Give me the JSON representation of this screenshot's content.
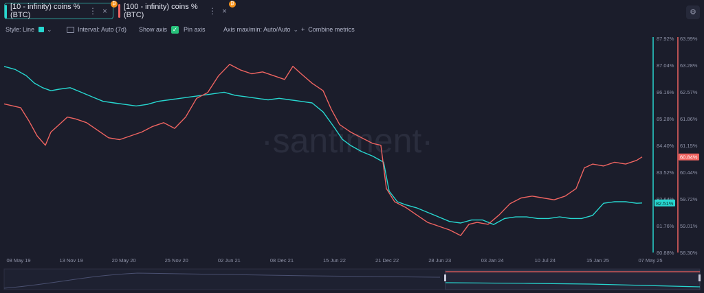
{
  "tabs": [
    {
      "label": "[10 - infinity) coins % (BTC)",
      "color": "#27d7d0",
      "dots": "⋮",
      "close": "×",
      "badge": "₿"
    },
    {
      "label": "[100 - infinity) coins % (BTC)",
      "color": "#ef6461",
      "dots": "⋮",
      "close": "×",
      "badge": "₿"
    }
  ],
  "toolbar": {
    "style_label": "Style: Line",
    "interval_label": "Interval: Auto (7d)",
    "show_axis_label": "Show axis",
    "pin_axis_label": "Pin axis",
    "axis_maxmin_label": "Axis max/min: Auto/Auto",
    "combine_label": "Combine metrics",
    "plus": "+",
    "checkmark": "✓",
    "chevron": "⌄"
  },
  "watermark": "·santiment·",
  "chart_data": {
    "type": "line",
    "x_ticks": [
      "08 May 19",
      "13 Nov 19",
      "20 May 20",
      "25 Nov 20",
      "02 Jun 21",
      "08 Dec 21",
      "15 Jun 22",
      "21 Dec 22",
      "28 Jun 23",
      "03 Jan 24",
      "10 Jul 24",
      "15 Jan 25",
      "07 May 25"
    ],
    "left_axis": {
      "series": "[10 - infinity) coins % (BTC)",
      "color": "#27d7d0",
      "ticks": [
        "87.92%",
        "87.04%",
        "86.16%",
        "85.28%",
        "84.40%",
        "83.52%",
        "82.64%",
        "81.76%",
        "80.88%"
      ],
      "range": [
        80.88,
        87.92
      ],
      "current": "82.51%"
    },
    "right_axis": {
      "series": "[100 - infinity) coins % (BTC)",
      "color": "#ef6461",
      "ticks": [
        "63.99%",
        "63.28%",
        "62.57%",
        "61.86%",
        "61.15%",
        "60.44%",
        "59.72%",
        "59.01%",
        "58.30%"
      ],
      "range": [
        58.3,
        63.99
      ],
      "current": "60.84%"
    },
    "series": [
      {
        "name": "[10 - infinity) coins % (BTC)",
        "axis": "left",
        "values": [
          [
            0,
            87.0
          ],
          [
            0.2,
            86.9
          ],
          [
            0.4,
            86.7
          ],
          [
            0.55,
            86.45
          ],
          [
            0.7,
            86.3
          ],
          [
            0.85,
            86.2
          ],
          [
            1.0,
            86.25
          ],
          [
            1.2,
            86.3
          ],
          [
            1.4,
            86.15
          ],
          [
            1.6,
            86.0
          ],
          [
            1.8,
            85.85
          ],
          [
            2.0,
            85.8
          ],
          [
            2.2,
            85.75
          ],
          [
            2.4,
            85.7
          ],
          [
            2.6,
            85.75
          ],
          [
            2.8,
            85.85
          ],
          [
            3.0,
            85.9
          ],
          [
            3.2,
            85.95
          ],
          [
            3.4,
            86.0
          ],
          [
            3.6,
            86.05
          ],
          [
            3.8,
            86.1
          ],
          [
            4.0,
            86.15
          ],
          [
            4.2,
            86.05
          ],
          [
            4.4,
            86.0
          ],
          [
            4.6,
            85.95
          ],
          [
            4.8,
            85.9
          ],
          [
            5.0,
            85.95
          ],
          [
            5.2,
            85.9
          ],
          [
            5.4,
            85.85
          ],
          [
            5.6,
            85.8
          ],
          [
            5.8,
            85.5
          ],
          [
            6.0,
            85.0
          ],
          [
            6.15,
            84.6
          ],
          [
            6.3,
            84.4
          ],
          [
            6.5,
            84.2
          ],
          [
            6.7,
            84.05
          ],
          [
            6.9,
            83.85
          ],
          [
            7.0,
            82.9
          ],
          [
            7.15,
            82.55
          ],
          [
            7.3,
            82.45
          ],
          [
            7.5,
            82.35
          ],
          [
            7.7,
            82.2
          ],
          [
            7.9,
            82.05
          ],
          [
            8.1,
            81.9
          ],
          [
            8.3,
            81.85
          ],
          [
            8.5,
            81.95
          ],
          [
            8.7,
            81.95
          ],
          [
            8.9,
            81.8
          ],
          [
            9.1,
            82.0
          ],
          [
            9.3,
            82.05
          ],
          [
            9.5,
            82.05
          ],
          [
            9.7,
            82.0
          ],
          [
            9.9,
            82.0
          ],
          [
            10.1,
            82.05
          ],
          [
            10.3,
            82.0
          ],
          [
            10.5,
            82.0
          ],
          [
            10.7,
            82.1
          ],
          [
            10.9,
            82.5
          ],
          [
            11.1,
            82.55
          ],
          [
            11.3,
            82.55
          ],
          [
            11.5,
            82.5
          ],
          [
            11.6,
            82.51
          ]
        ]
      },
      {
        "name": "[100 - infinity) coins % (BTC)",
        "axis": "right",
        "values": [
          [
            0,
            62.25
          ],
          [
            0.15,
            62.2
          ],
          [
            0.3,
            62.15
          ],
          [
            0.45,
            61.8
          ],
          [
            0.6,
            61.4
          ],
          [
            0.75,
            61.15
          ],
          [
            0.85,
            61.5
          ],
          [
            1.0,
            61.7
          ],
          [
            1.15,
            61.9
          ],
          [
            1.3,
            61.85
          ],
          [
            1.5,
            61.75
          ],
          [
            1.7,
            61.55
          ],
          [
            1.9,
            61.35
          ],
          [
            2.1,
            61.3
          ],
          [
            2.3,
            61.4
          ],
          [
            2.5,
            61.5
          ],
          [
            2.7,
            61.65
          ],
          [
            2.9,
            61.75
          ],
          [
            3.1,
            61.6
          ],
          [
            3.3,
            61.9
          ],
          [
            3.5,
            62.4
          ],
          [
            3.7,
            62.55
          ],
          [
            3.9,
            63.0
          ],
          [
            4.1,
            63.3
          ],
          [
            4.3,
            63.15
          ],
          [
            4.5,
            63.05
          ],
          [
            4.7,
            63.1
          ],
          [
            4.9,
            63.0
          ],
          [
            5.1,
            62.9
          ],
          [
            5.25,
            63.25
          ],
          [
            5.4,
            63.05
          ],
          [
            5.6,
            62.8
          ],
          [
            5.8,
            62.6
          ],
          [
            5.95,
            62.1
          ],
          [
            6.1,
            61.7
          ],
          [
            6.3,
            61.5
          ],
          [
            6.5,
            61.35
          ],
          [
            6.7,
            61.2
          ],
          [
            6.85,
            61.15
          ],
          [
            6.95,
            60.0
          ],
          [
            7.1,
            59.65
          ],
          [
            7.3,
            59.5
          ],
          [
            7.5,
            59.3
          ],
          [
            7.7,
            59.1
          ],
          [
            7.9,
            59.0
          ],
          [
            8.1,
            58.9
          ],
          [
            8.3,
            58.75
          ],
          [
            8.45,
            59.05
          ],
          [
            8.6,
            59.1
          ],
          [
            8.8,
            59.05
          ],
          [
            9.0,
            59.3
          ],
          [
            9.2,
            59.6
          ],
          [
            9.4,
            59.75
          ],
          [
            9.6,
            59.8
          ],
          [
            9.8,
            59.75
          ],
          [
            10.0,
            59.7
          ],
          [
            10.2,
            59.8
          ],
          [
            10.4,
            60.0
          ],
          [
            10.55,
            60.55
          ],
          [
            10.7,
            60.65
          ],
          [
            10.9,
            60.6
          ],
          [
            11.1,
            60.7
          ],
          [
            11.3,
            60.65
          ],
          [
            11.5,
            60.75
          ],
          [
            11.6,
            60.84
          ]
        ]
      }
    ]
  }
}
